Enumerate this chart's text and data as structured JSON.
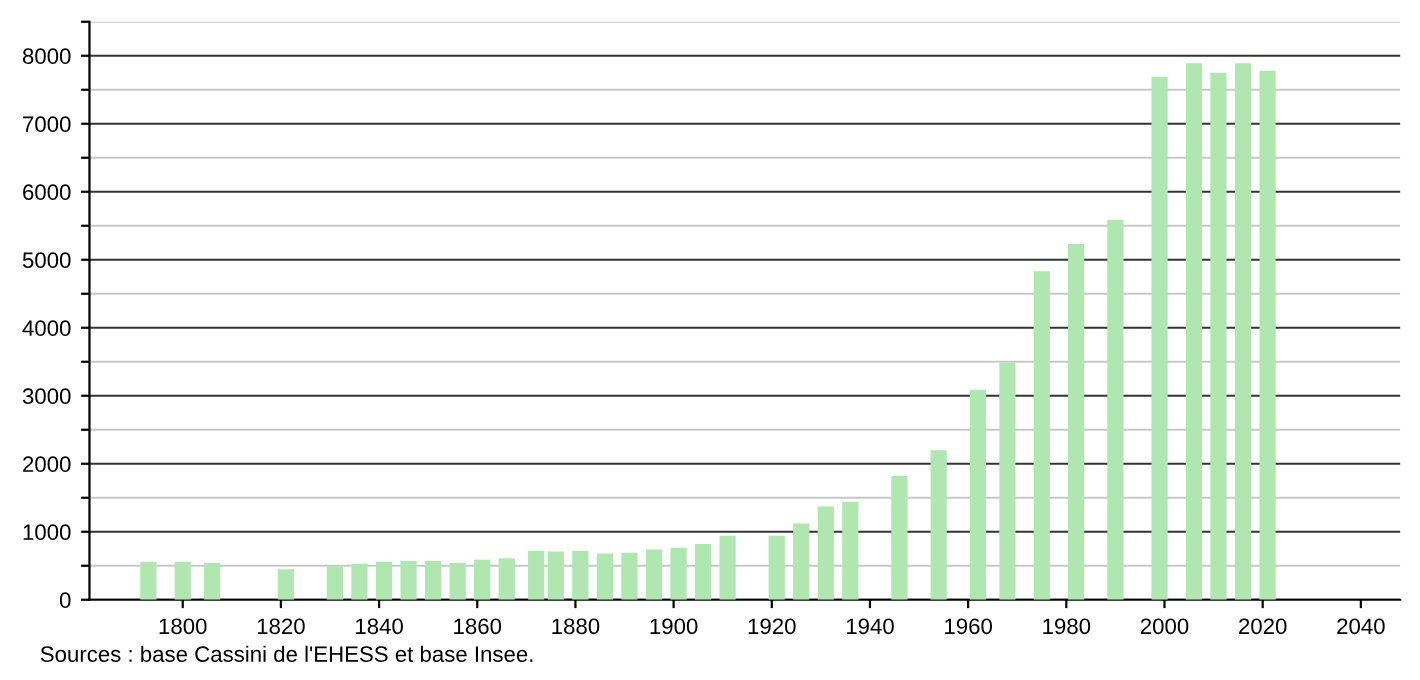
{
  "chart_data": {
    "type": "bar",
    "x": [
      1793,
      1800,
      1806,
      1821,
      1831,
      1836,
      1841,
      1846,
      1851,
      1856,
      1861,
      1866,
      1872,
      1876,
      1881,
      1886,
      1891,
      1896,
      1901,
      1906,
      1911,
      1921,
      1926,
      1931,
      1936,
      1946,
      1954,
      1962,
      1968,
      1975,
      1982,
      1990,
      1999,
      2006,
      2011,
      2016,
      2021
    ],
    "values": [
      560,
      560,
      540,
      450,
      500,
      530,
      560,
      570,
      570,
      540,
      590,
      610,
      720,
      710,
      720,
      680,
      690,
      740,
      760,
      820,
      940,
      940,
      1120,
      1370,
      1440,
      1820,
      2200,
      3090,
      3480,
      4830,
      5230,
      5590,
      7690,
      7890,
      7750,
      7890,
      7780
    ],
    "color": "#b0e6b0",
    "xlim": [
      1781,
      2048
    ],
    "xticks": [
      1800,
      1820,
      1840,
      1860,
      1880,
      1900,
      1920,
      1940,
      1960,
      1980,
      2000,
      2020,
      2040
    ],
    "ylim": [
      0,
      8500
    ],
    "yticks": [
      0,
      {
        "value": 500,
        "label": null
      },
      1000,
      {
        "value": 1500,
        "label": null
      },
      2000,
      {
        "value": 2500,
        "label": null
      },
      3000,
      {
        "value": 3500,
        "label": null
      },
      4000,
      {
        "value": 4500,
        "label": null
      },
      5000,
      {
        "value": 5500,
        "label": null
      },
      6000,
      {
        "value": 6500,
        "label": null
      },
      7000,
      {
        "value": 7500,
        "label": null
      },
      8000,
      {
        "value": 8500,
        "label": null
      }
    ],
    "grid": "y",
    "annotations": [
      "Sources : base Cassini de l'EHESS et base Insee."
    ]
  }
}
